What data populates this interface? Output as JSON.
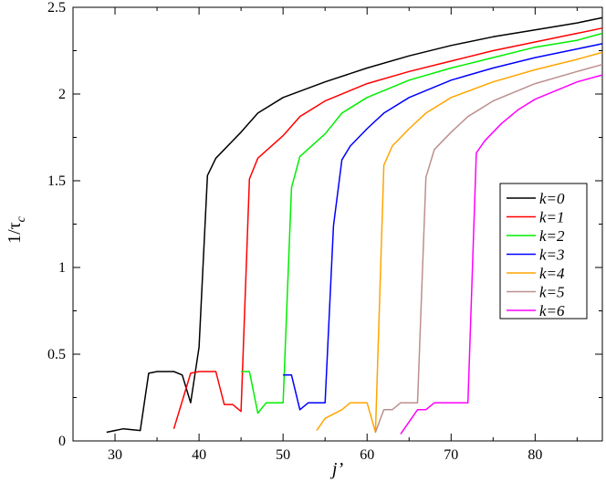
{
  "chart_data": {
    "type": "line",
    "xlabel": "j’",
    "ylabel": "1/τ",
    "ylabel_sub": "c",
    "xlim": [
      25,
      88
    ],
    "ylim": [
      0,
      2.5
    ],
    "xticks": [
      30,
      40,
      50,
      60,
      70,
      80
    ],
    "yticks": [
      0,
      0.5,
      1,
      1.5,
      2,
      2.5
    ],
    "ytick_labels": [
      "0",
      "0.5",
      "1",
      "1.5",
      "2",
      "2.5"
    ],
    "grid": false,
    "legend_position": "right",
    "series": [
      {
        "name": "k=0",
        "color": "#000000",
        "points": [
          [
            29,
            0.05
          ],
          [
            31,
            0.07
          ],
          [
            33,
            0.06
          ],
          [
            34,
            0.39
          ],
          [
            35,
            0.4
          ],
          [
            37,
            0.4
          ],
          [
            38,
            0.38
          ],
          [
            39,
            0.22
          ],
          [
            40,
            0.54
          ],
          [
            41,
            1.53
          ],
          [
            42,
            1.63
          ],
          [
            43,
            1.68
          ],
          [
            45,
            1.78
          ],
          [
            47,
            1.89
          ],
          [
            50,
            1.98
          ],
          [
            55,
            2.07
          ],
          [
            60,
            2.15
          ],
          [
            65,
            2.22
          ],
          [
            70,
            2.28
          ],
          [
            75,
            2.33
          ],
          [
            80,
            2.37
          ],
          [
            85,
            2.41
          ],
          [
            88,
            2.44
          ]
        ]
      },
      {
        "name": "k=1",
        "color": "#ff0000",
        "points": [
          [
            37,
            0.07
          ],
          [
            39,
            0.39
          ],
          [
            40,
            0.4
          ],
          [
            42,
            0.4
          ],
          [
            43,
            0.21
          ],
          [
            44,
            0.21
          ],
          [
            45,
            0.17
          ],
          [
            46,
            1.51
          ],
          [
            47,
            1.63
          ],
          [
            50,
            1.76
          ],
          [
            52,
            1.87
          ],
          [
            55,
            1.96
          ],
          [
            60,
            2.06
          ],
          [
            65,
            2.13
          ],
          [
            70,
            2.19
          ],
          [
            75,
            2.25
          ],
          [
            80,
            2.3
          ],
          [
            85,
            2.35
          ],
          [
            88,
            2.38
          ]
        ]
      },
      {
        "name": "k=2",
        "color": "#00ee00",
        "points": [
          [
            45,
            0.4
          ],
          [
            46,
            0.4
          ],
          [
            47,
            0.16
          ],
          [
            48,
            0.22
          ],
          [
            50,
            0.22
          ],
          [
            51,
            1.46
          ],
          [
            52,
            1.64
          ],
          [
            55,
            1.77
          ],
          [
            57,
            1.89
          ],
          [
            60,
            1.98
          ],
          [
            65,
            2.08
          ],
          [
            70,
            2.15
          ],
          [
            75,
            2.21
          ],
          [
            80,
            2.27
          ],
          [
            85,
            2.31
          ],
          [
            88,
            2.35
          ]
        ]
      },
      {
        "name": "k=3",
        "color": "#0000ff",
        "points": [
          [
            50,
            0.38
          ],
          [
            51,
            0.38
          ],
          [
            52,
            0.18
          ],
          [
            53,
            0.22
          ],
          [
            55,
            0.22
          ],
          [
            56,
            1.24
          ],
          [
            57,
            1.62
          ],
          [
            58,
            1.7
          ],
          [
            60,
            1.8
          ],
          [
            62,
            1.89
          ],
          [
            65,
            1.98
          ],
          [
            70,
            2.08
          ],
          [
            75,
            2.15
          ],
          [
            80,
            2.21
          ],
          [
            85,
            2.26
          ],
          [
            88,
            2.29
          ]
        ]
      },
      {
        "name": "k=4",
        "color": "#ffa500",
        "points": [
          [
            54,
            0.06
          ],
          [
            55,
            0.13
          ],
          [
            57,
            0.18
          ],
          [
            58,
            0.22
          ],
          [
            60,
            0.22
          ],
          [
            61,
            0.05
          ],
          [
            62,
            1.59
          ],
          [
            63,
            1.7
          ],
          [
            65,
            1.8
          ],
          [
            67,
            1.89
          ],
          [
            70,
            1.98
          ],
          [
            75,
            2.07
          ],
          [
            80,
            2.14
          ],
          [
            85,
            2.2
          ],
          [
            88,
            2.24
          ]
        ]
      },
      {
        "name": "k=5",
        "color": "#bc8f8f",
        "points": [
          [
            61,
            0.05
          ],
          [
            62,
            0.18
          ],
          [
            63,
            0.18
          ],
          [
            64,
            0.22
          ],
          [
            66,
            0.22
          ],
          [
            67,
            1.52
          ],
          [
            68,
            1.68
          ],
          [
            70,
            1.78
          ],
          [
            72,
            1.87
          ],
          [
            75,
            1.96
          ],
          [
            80,
            2.06
          ],
          [
            85,
            2.13
          ],
          [
            88,
            2.17
          ]
        ]
      },
      {
        "name": "k=6",
        "color": "#ff00ff",
        "points": [
          [
            64,
            0.04
          ],
          [
            66,
            0.18
          ],
          [
            67,
            0.18
          ],
          [
            68,
            0.22
          ],
          [
            70,
            0.22
          ],
          [
            72,
            0.22
          ],
          [
            73,
            1.66
          ],
          [
            74,
            1.73
          ],
          [
            76,
            1.83
          ],
          [
            78,
            1.91
          ],
          [
            80,
            1.97
          ],
          [
            85,
            2.07
          ],
          [
            88,
            2.11
          ]
        ]
      }
    ]
  }
}
